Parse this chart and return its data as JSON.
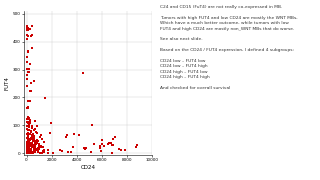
{
  "title": "",
  "xlabel": "CD24",
  "ylabel": "FUT4",
  "xlim": [
    -200,
    10000
  ],
  "ylim": [
    -5,
    510
  ],
  "xticks": [
    0,
    2000,
    4000,
    6000,
    8000,
    10000
  ],
  "yticks": [
    0,
    100,
    200,
    300,
    400,
    500
  ],
  "scatter_color": "#cc0000",
  "marker": "s",
  "marker_size": 1.5,
  "annotation_lines": [
    "C24 and CD15 (FuT4) are not really co-expressed in MB.",
    "",
    "Tumors with high FUT4 and low CD24 are mostly the WNT MBs,",
    "Which have a much better outcome, while tumors with low",
    "FUT4 and high CD24 are mostly non_WNT MBs that do worse.",
    "",
    "See also next slide.",
    "",
    "Based on the CD24 / FUT4 expression, I defined 4 subgroups:",
    "",
    "CD24 low – FUT4 low",
    "CD24 low – FUT4 high",
    "CD24 high – FUT4 low",
    "CD24 high – FUT4 high",
    "",
    "And checked for overall survival"
  ],
  "seed": 42
}
